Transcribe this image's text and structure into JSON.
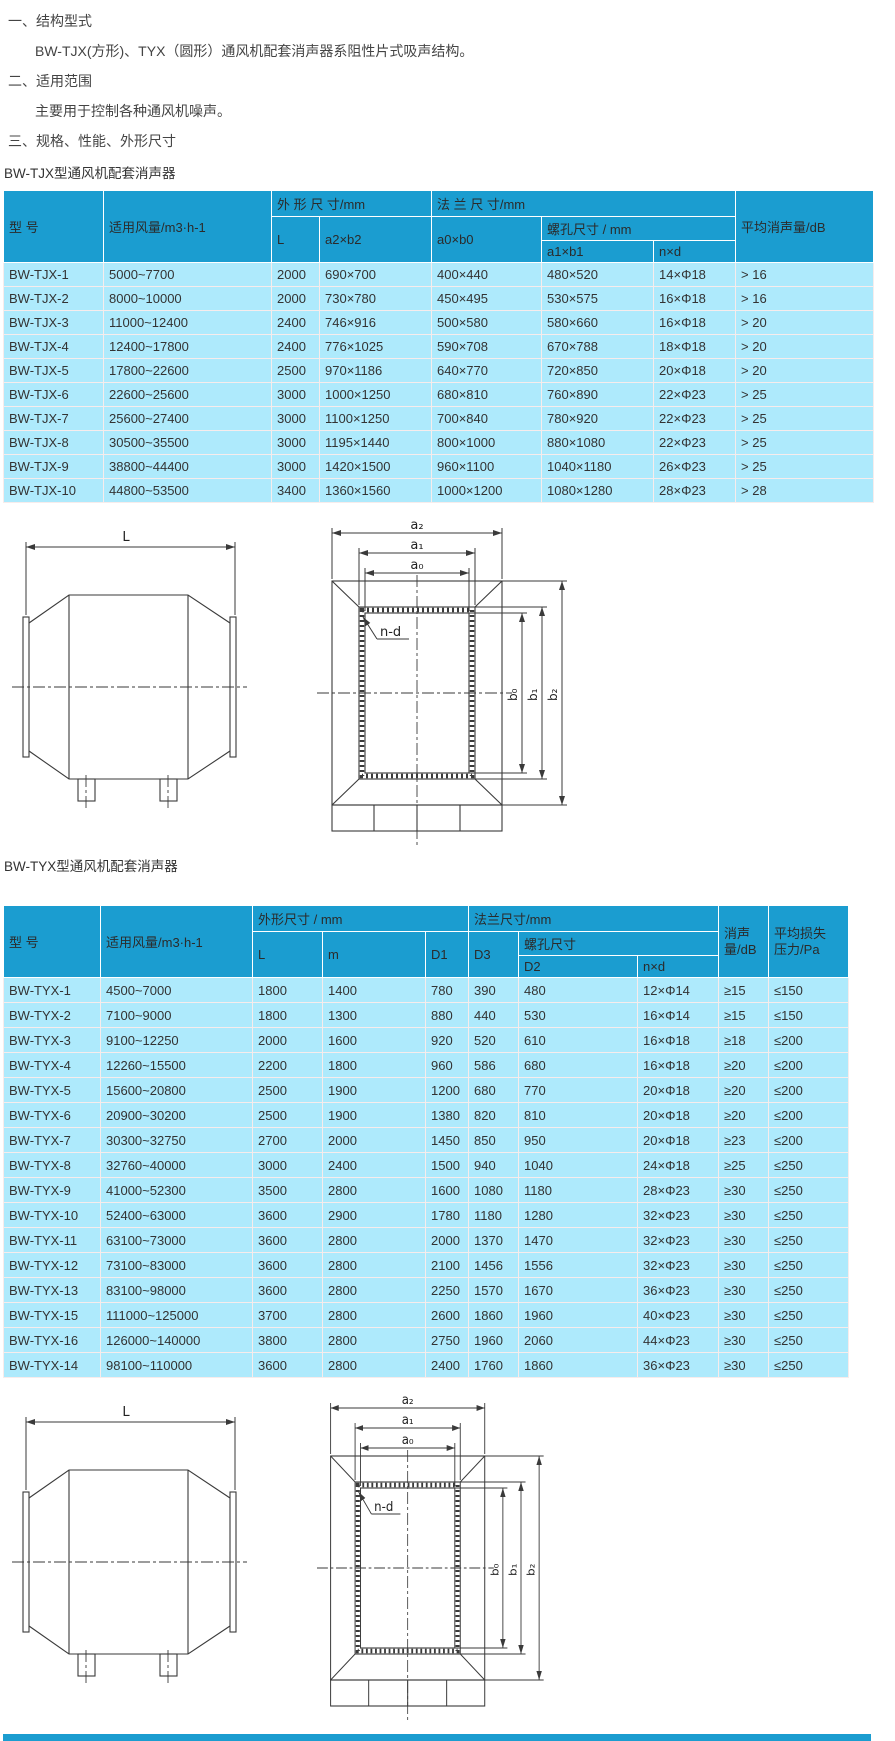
{
  "colors": {
    "header_bg": "#1b9dd0",
    "row_bg": "#aeeafc"
  },
  "intro": {
    "s1_title": "一、结构型式",
    "s1_body": "BW-TJX(方形)、TYX（圆形）通风机配套消声器系阻性片式吸声结构。",
    "s2_title": "二、适用范围",
    "s2_body": "主要用于控制各种通风机噪声。",
    "s3_title": "三、规格、性能、外形尺寸"
  },
  "table1": {
    "caption": "BW-TJX型通风机配套消声器",
    "header": {
      "model": "型 号",
      "flow": "适用风量/m3·h-1",
      "outer": "外 形 尺 寸/mm",
      "flange": "法 兰 尺 寸/mm",
      "L": "L",
      "a2b2": "a2×b2",
      "a0b0": "a0×b0",
      "bolt": "螺孔尺寸 / mm",
      "a1b1": "a1×b1",
      "nd": "n×d",
      "avg": "平均消声量/dB"
    },
    "rows": [
      [
        "BW-TJX-1",
        "5000~7700",
        "2000",
        "690×700",
        "400×440",
        "480×520",
        "14×Φ18",
        "> 16"
      ],
      [
        "BW-TJX-2",
        "8000~10000",
        "2000",
        "730×780",
        "450×495",
        "530×575",
        "16×Φ18",
        "> 16"
      ],
      [
        "BW-TJX-3",
        "11000~12400",
        "2400",
        "746×916",
        "500×580",
        "580×660",
        "16×Φ18",
        "> 20"
      ],
      [
        "BW-TJX-4",
        "12400~17800",
        "2400",
        "776×1025",
        "590×708",
        "670×788",
        "18×Φ18",
        "> 20"
      ],
      [
        "BW-TJX-5",
        "17800~22600",
        "2500",
        "970×1186",
        "640×770",
        "720×850",
        "20×Φ18",
        "> 20"
      ],
      [
        "BW-TJX-6",
        "22600~25600",
        "3000",
        "1000×1250",
        "680×810",
        "760×890",
        "22×Φ23",
        "> 25"
      ],
      [
        "BW-TJX-7",
        "25600~27400",
        "3000",
        "1100×1250",
        "700×840",
        "780×920",
        "22×Φ23",
        "> 25"
      ],
      [
        "BW-TJX-8",
        "30500~35500",
        "3000",
        "1195×1440",
        "800×1000",
        "880×1080",
        "22×Φ23",
        "> 25"
      ],
      [
        "BW-TJX-9",
        "38800~44400",
        "3000",
        "1420×1500",
        "960×1100",
        "1040×1180",
        "26×Φ23",
        "> 25"
      ],
      [
        "BW-TJX-10",
        "44800~53500",
        "3400",
        "1360×1560",
        "1000×1200",
        "1080×1280",
        "28×Φ23",
        "> 28"
      ]
    ]
  },
  "table2": {
    "caption": "BW-TYX型通风机配套消声器",
    "header": {
      "model": "型 号",
      "flow": "适用风量/m3·h-1",
      "outer": "外形尺寸 / mm",
      "flange": "法兰尺寸/mm",
      "L": "L",
      "m": "m",
      "D1": "D1",
      "D3": "D3",
      "bolt": "螺孔尺寸",
      "D2": "D2",
      "nd": "n×d",
      "atten": "消声\n量/dB",
      "loss": "平均损失\n压力/Pa"
    },
    "rows": [
      [
        "BW-TYX-1",
        "4500~7000",
        "1800",
        "1400",
        "780",
        "390",
        "480",
        "12×Φ14",
        "≥15",
        "≤150"
      ],
      [
        "BW-TYX-2",
        "7100~9000",
        "1800",
        "1300",
        "880",
        "440",
        "530",
        "16×Φ14",
        "≥15",
        "≤150"
      ],
      [
        "BW-TYX-3",
        "9100~12250",
        "2000",
        "1600",
        "920",
        "520",
        "610",
        "16×Φ18",
        "≥18",
        "≤200"
      ],
      [
        "BW-TYX-4",
        "12260~15500",
        "2200",
        "1800",
        "960",
        "586",
        "680",
        "16×Φ18",
        "≥20",
        "≤200"
      ],
      [
        "BW-TYX-5",
        "15600~20800",
        "2500",
        "1900",
        "1200",
        "680",
        "770",
        "20×Φ18",
        "≥20",
        "≤200"
      ],
      [
        "BW-TYX-6",
        "20900~30200",
        "2500",
        "1900",
        "1380",
        "820",
        "810",
        "20×Φ18",
        "≥20",
        "≤200"
      ],
      [
        "BW-TYX-7",
        "30300~32750",
        "2700",
        "2000",
        "1450",
        "850",
        "950",
        "20×Φ18",
        "≥23",
        "≤200"
      ],
      [
        "BW-TYX-8",
        "32760~40000",
        "3000",
        "2400",
        "1500",
        "940",
        "1040",
        "24×Φ18",
        "≥25",
        "≤250"
      ],
      [
        "BW-TYX-9",
        "41000~52300",
        "3500",
        "2800",
        "1600",
        "1080",
        "1180",
        "28×Φ23",
        "≥30",
        "≤250"
      ],
      [
        "BW-TYX-10",
        "52400~63000",
        "3600",
        "2900",
        "1780",
        "1180",
        "1280",
        "32×Φ23",
        "≥30",
        "≤250"
      ],
      [
        "BW-TYX-11",
        "63100~73000",
        "3600",
        "2800",
        "2000",
        "1370",
        "1470",
        "32×Φ23",
        "≥30",
        "≤250"
      ],
      [
        "BW-TYX-12",
        "73100~83000",
        "3600",
        "2800",
        "2100",
        "1456",
        "1556",
        "32×Φ23",
        "≥30",
        "≤250"
      ],
      [
        "BW-TYX-13",
        "83100~98000",
        "3600",
        "2800",
        "2250",
        "1570",
        "1670",
        "36×Φ23",
        "≥30",
        "≤250"
      ],
      [
        "BW-TYX-15",
        "111000~125000",
        "3700",
        "2800",
        "2600",
        "1860",
        "1960",
        "40×Φ23",
        "≥30",
        "≤250"
      ],
      [
        "BW-TYX-16",
        "126000~140000",
        "3800",
        "2800",
        "2750",
        "1960",
        "2060",
        "44×Φ23",
        "≥30",
        "≤250"
      ],
      [
        "BW-TYX-14",
        "98100~110000",
        "3600",
        "2800",
        "2400",
        "1760",
        "1860",
        "36×Φ23",
        "≥30",
        "≤250"
      ]
    ]
  },
  "diagram": {
    "L": "L",
    "a2": "a₂",
    "a1": "a₁",
    "a0": "a₀",
    "b0": "b₀",
    "b1": "b₁",
    "b2": "b₂",
    "nd": "n-d"
  }
}
